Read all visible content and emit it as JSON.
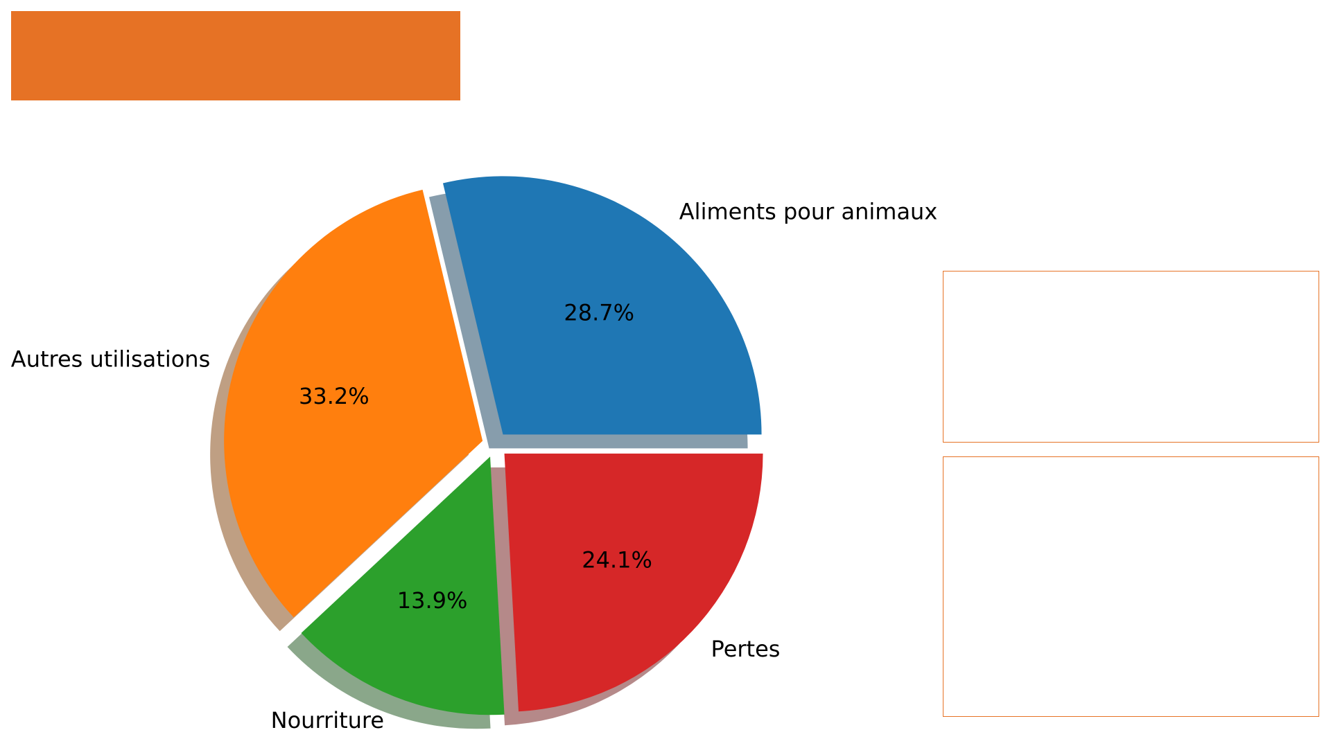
{
  "theme": {
    "accent": "#e67225",
    "panel_border": "#e67225",
    "shadow_alpha": 0.5
  },
  "chart_data": {
    "type": "pie",
    "title": "",
    "start_angle_deg": 0,
    "direction": "counterclockwise",
    "shadow": true,
    "slices": [
      {
        "label": "Aliments pour animaux",
        "value": 28.7,
        "pct_label": "28.7%",
        "color": "#1f77b4",
        "explode": 0.05
      },
      {
        "label": "Autres utilisations",
        "value": 33.2,
        "pct_label": "33.2%",
        "color": "#ff7f0e",
        "explode": 0.05
      },
      {
        "label": "Nourriture",
        "value": 13.9,
        "pct_label": "13.9%",
        "color": "#2ca02c",
        "explode": 0.05
      },
      {
        "label": "Pertes",
        "value": 24.1,
        "pct_label": "24.1%",
        "color": "#d62728",
        "explode": 0.05
      }
    ]
  }
}
